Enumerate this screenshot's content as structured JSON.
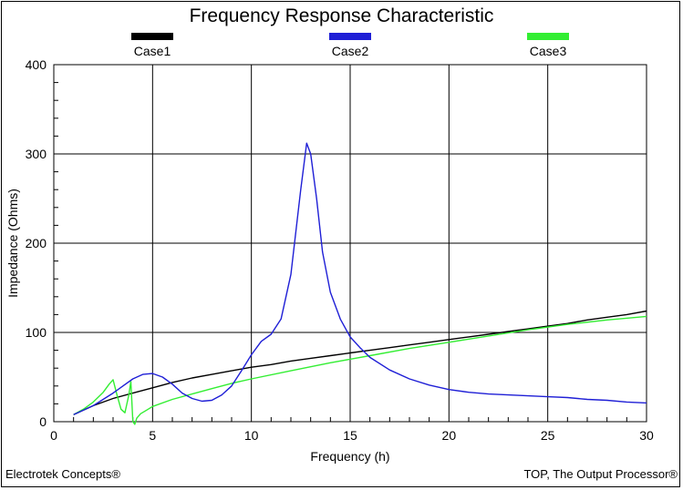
{
  "chart_data": {
    "type": "line",
    "title": "Frequency Response Characteristic",
    "xlabel": "Frequency (h)",
    "ylabel": "Impedance (Ohms)",
    "xlim": [
      0,
      30
    ],
    "ylim": [
      0,
      400
    ],
    "x_ticks": [
      "0",
      "5",
      "10",
      "15",
      "20",
      "25",
      "30"
    ],
    "y_ticks": [
      "0",
      "100",
      "200",
      "300",
      "400"
    ],
    "grid": true,
    "legend_position": "top",
    "series": [
      {
        "name": "Case1",
        "color": "#000000",
        "x": [
          1,
          2,
          3,
          4,
          5,
          6,
          7,
          8,
          9,
          10,
          11,
          12,
          13,
          14,
          15,
          16,
          17,
          18,
          19,
          20,
          21,
          22,
          23,
          24,
          25,
          26,
          27,
          28,
          29,
          30
        ],
        "y": [
          8,
          18,
          26,
          32,
          38,
          44,
          49,
          53,
          57,
          61,
          64,
          68,
          71,
          74,
          77,
          80,
          83,
          86,
          89,
          92,
          95,
          98,
          101,
          104,
          107,
          110,
          114,
          117,
          120,
          124
        ]
      },
      {
        "name": "Case2",
        "color": "#1f1fd6",
        "x": [
          1,
          2,
          3,
          3.5,
          4,
          4.5,
          5,
          5.5,
          6,
          6.5,
          7,
          7.5,
          8,
          8.5,
          9,
          9.5,
          10,
          10.5,
          11,
          11.5,
          12,
          12.5,
          12.8,
          13,
          13.3,
          13.6,
          14,
          14.5,
          15,
          15.5,
          16,
          17,
          18,
          19,
          20,
          21,
          22,
          23,
          24,
          25,
          26,
          27,
          28,
          29,
          30
        ],
        "y": [
          8,
          18,
          32,
          40,
          48,
          53,
          54,
          50,
          42,
          32,
          26,
          23,
          24,
          30,
          40,
          57,
          75,
          90,
          98,
          115,
          165,
          260,
          312,
          300,
          250,
          190,
          145,
          115,
          95,
          83,
          72,
          58,
          48,
          41,
          36,
          33,
          31,
          30,
          29,
          28,
          27,
          25,
          24,
          22,
          21
        ]
      },
      {
        "name": "Case3",
        "color": "#33ee33",
        "x": [
          1,
          1.5,
          2,
          2.5,
          2.8,
          3,
          3.2,
          3.4,
          3.6,
          3.8,
          3.9,
          4.0,
          4.1,
          4.2,
          4.4,
          4.7,
          5,
          6,
          7,
          8,
          9,
          10,
          12,
          14,
          16,
          18,
          20,
          22,
          24,
          26,
          28,
          30
        ],
        "y": [
          8,
          14,
          22,
          33,
          42,
          47,
          30,
          14,
          10,
          30,
          45,
          0,
          -3,
          4,
          9,
          13,
          17,
          25,
          31,
          37,
          43,
          48,
          57,
          66,
          74,
          82,
          89,
          96,
          103,
          109,
          114,
          118
        ]
      }
    ]
  },
  "footer": {
    "left": "Electrotek Concepts®",
    "right": "TOP, The Output Processor®"
  }
}
